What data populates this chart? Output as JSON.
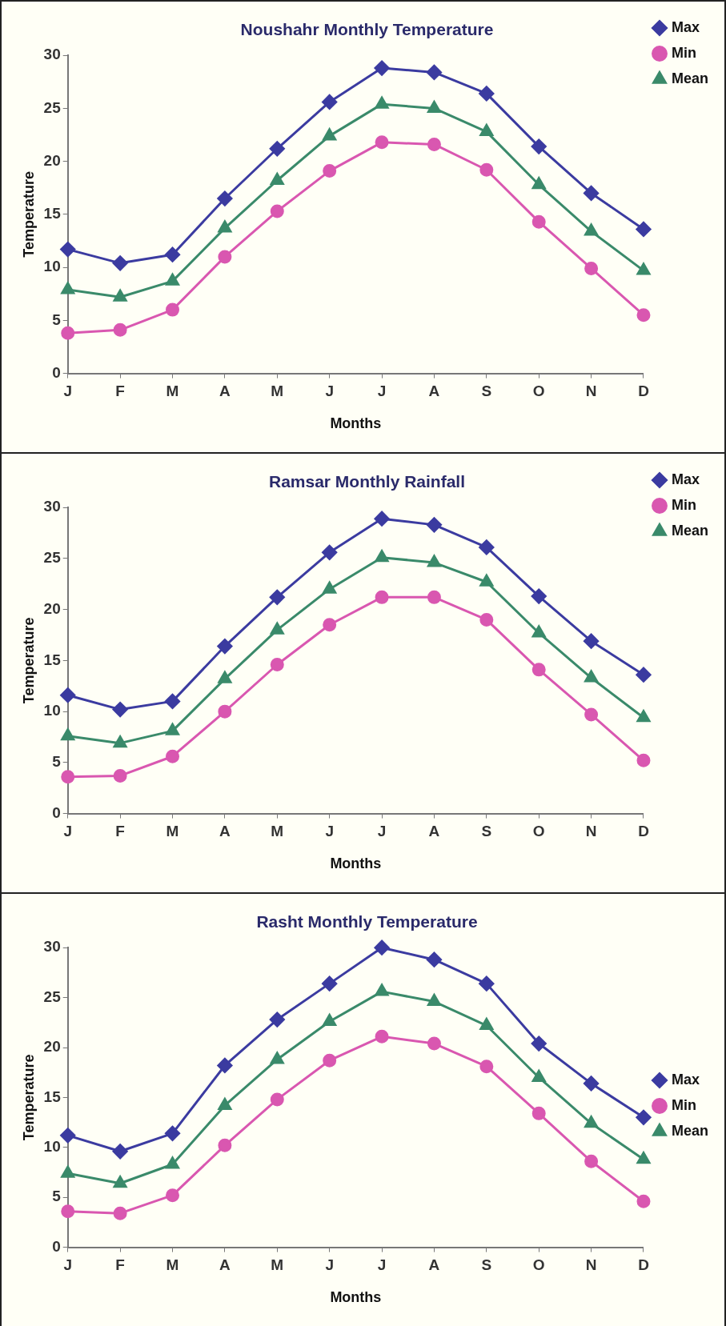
{
  "chart_data": [
    {
      "type": "line",
      "title": "Noushahr Monthly Temperature",
      "xlabel": "Months",
      "ylabel": "Temperature",
      "categories": [
        "J",
        "F",
        "M",
        "A",
        "M",
        "J",
        "J",
        "A",
        "S",
        "O",
        "N",
        "D"
      ],
      "series": [
        {
          "name": "Max",
          "color": "#3b3ba0",
          "marker": "diamond",
          "values": [
            11.7,
            10.4,
            11.2,
            16.5,
            21.2,
            25.6,
            28.8,
            28.4,
            26.4,
            21.4,
            17.0,
            13.6
          ]
        },
        {
          "name": "Min",
          "color": "#d957b0",
          "marker": "circle",
          "values": [
            3.8,
            4.1,
            6.0,
            11.0,
            15.3,
            19.1,
            21.8,
            21.6,
            19.2,
            14.3,
            9.9,
            5.5
          ]
        },
        {
          "name": "Mean",
          "color": "#3a8a6a",
          "marker": "triangle",
          "values": [
            7.9,
            7.2,
            8.7,
            13.7,
            18.2,
            22.4,
            25.4,
            25.0,
            22.8,
            17.8,
            13.4,
            9.7
          ]
        }
      ],
      "ylim": [
        0,
        30
      ],
      "yticks": [
        0,
        5,
        10,
        15,
        20,
        25,
        30
      ],
      "grid": false,
      "legend": "top right",
      "line_style": "solid"
    },
    {
      "type": "line",
      "title": "Ramsar Monthly Rainfall",
      "xlabel": "Months",
      "ylabel": "Temperature",
      "categories": [
        "J",
        "F",
        "M",
        "A",
        "M",
        "J",
        "J",
        "A",
        "S",
        "O",
        "N",
        "D"
      ],
      "series": [
        {
          "name": "Max",
          "color": "#3b3ba0",
          "marker": "diamond",
          "values": [
            11.6,
            10.2,
            11.0,
            16.4,
            21.2,
            25.6,
            28.9,
            28.3,
            26.1,
            21.3,
            16.9,
            13.6
          ]
        },
        {
          "name": "Min",
          "color": "#d957b0",
          "marker": "circle",
          "values": [
            3.6,
            3.7,
            5.6,
            10.0,
            14.6,
            18.5,
            21.2,
            21.2,
            19.0,
            14.1,
            9.7,
            5.2
          ]
        },
        {
          "name": "Mean",
          "color": "#3a8a6a",
          "marker": "triangle",
          "values": [
            7.6,
            6.9,
            8.1,
            13.2,
            18.0,
            22.0,
            25.1,
            24.6,
            22.7,
            17.7,
            13.3,
            9.4
          ]
        }
      ],
      "ylim": [
        0,
        30
      ],
      "yticks": [
        0,
        5,
        10,
        15,
        20,
        25,
        30
      ],
      "grid": false,
      "legend": "top right",
      "line_style": "solid"
    },
    {
      "type": "line",
      "title": "Rasht Monthly Temperature",
      "xlabel": "Months",
      "ylabel": "Temperature",
      "categories": [
        "J",
        "F",
        "M",
        "A",
        "M",
        "J",
        "J",
        "A",
        "S",
        "O",
        "N",
        "D"
      ],
      "series": [
        {
          "name": "Max",
          "color": "#3b3ba0",
          "marker": "diamond",
          "values": [
            11.2,
            9.6,
            11.4,
            18.2,
            22.8,
            26.4,
            30.0,
            28.8,
            26.4,
            20.4,
            16.4,
            13.0
          ]
        },
        {
          "name": "Min",
          "color": "#d957b0",
          "marker": "circle",
          "values": [
            3.6,
            3.4,
            5.2,
            10.2,
            14.8,
            18.7,
            21.1,
            20.4,
            18.1,
            13.4,
            8.6,
            4.6
          ]
        },
        {
          "name": "Mean",
          "color": "#3a8a6a",
          "marker": "triangle",
          "values": [
            7.4,
            6.4,
            8.3,
            14.2,
            18.8,
            22.6,
            25.6,
            24.6,
            22.2,
            17.0,
            12.4,
            8.8
          ]
        }
      ],
      "ylim": [
        0,
        30
      ],
      "yticks": [
        0,
        5,
        10,
        15,
        20,
        25,
        30
      ],
      "grid": false,
      "legend": "right",
      "line_style": "solid"
    }
  ]
}
